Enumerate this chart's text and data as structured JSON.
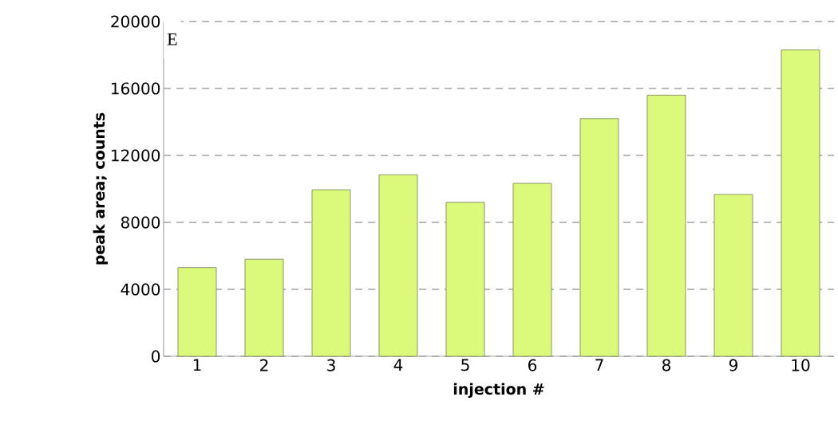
{
  "chart_data": {
    "type": "bar",
    "xlabel": "injection #",
    "ylabel": "peak area; counts",
    "categories": [
      "1",
      "2",
      "3",
      "4",
      "5",
      "6",
      "7",
      "8",
      "9",
      "10"
    ],
    "values": [
      5300,
      5800,
      9950,
      10850,
      9200,
      10330,
      14200,
      15600,
      9670,
      18300
    ],
    "color": "#dbfa7c",
    "ylim": [
      0,
      20000
    ],
    "yticks": [
      0,
      4000,
      8000,
      12000,
      16000,
      20000
    ],
    "grid": "y",
    "annotations": [
      "E"
    ]
  }
}
